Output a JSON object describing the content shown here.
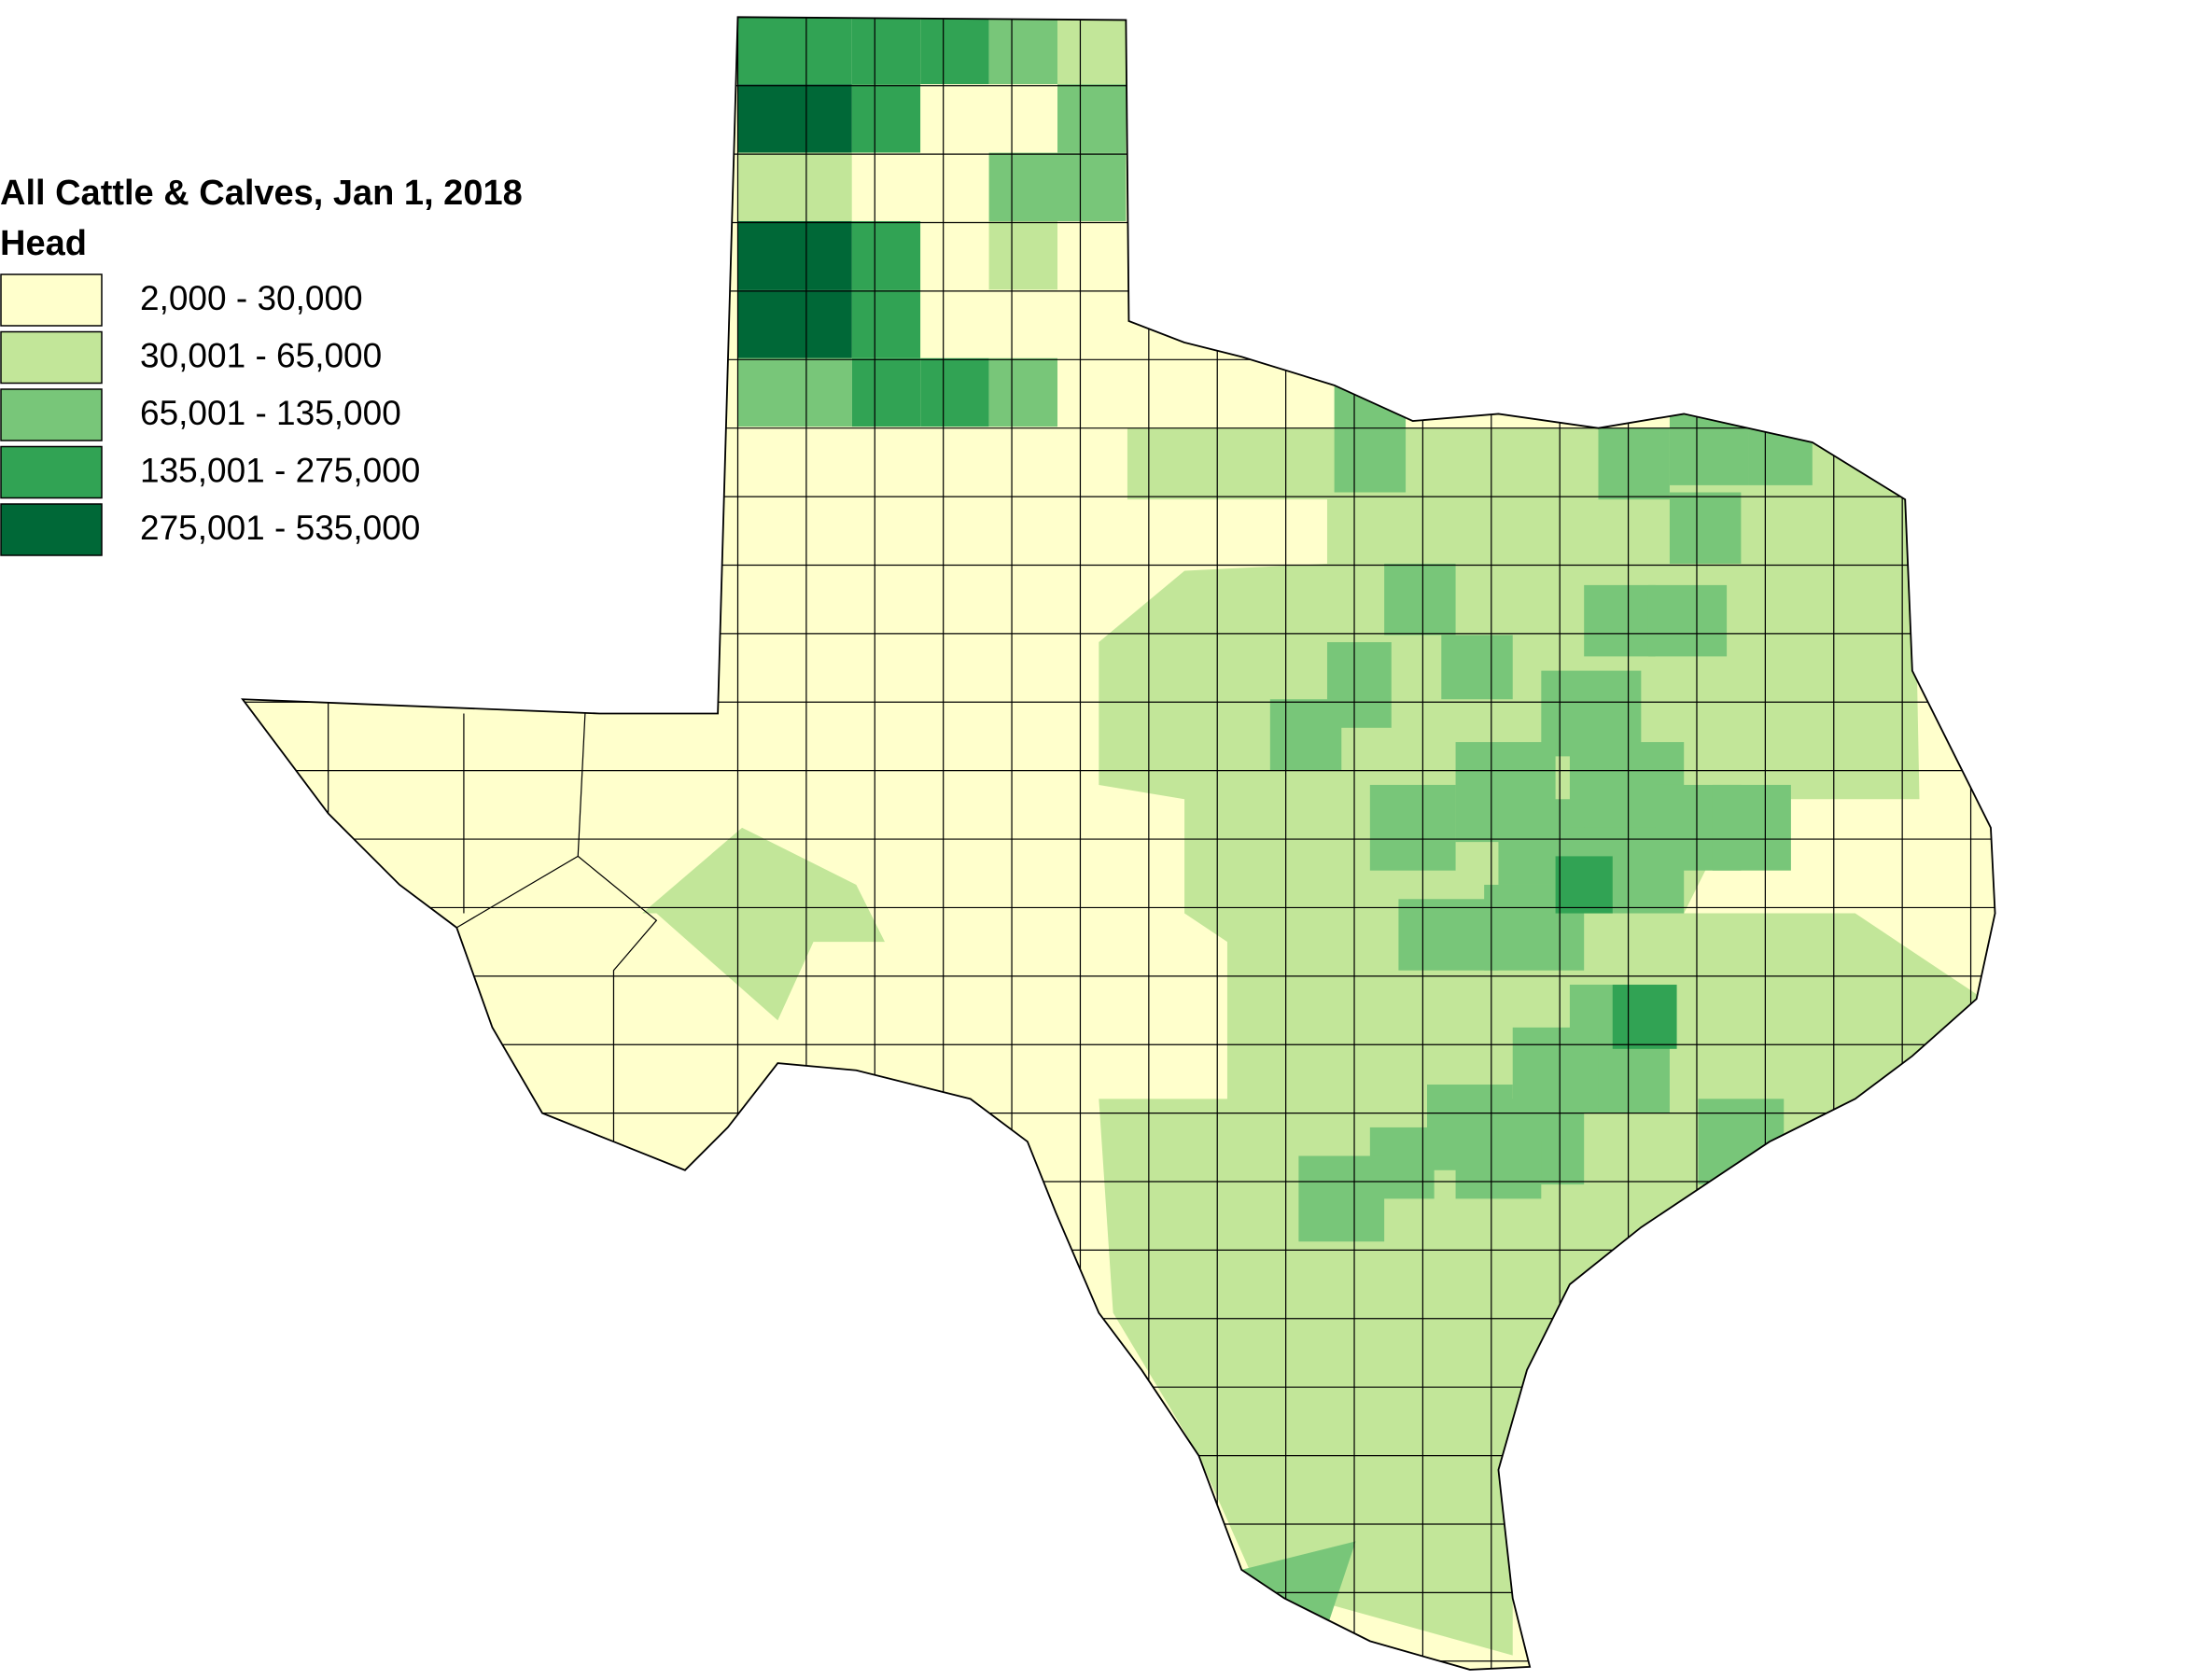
{
  "legend": {
    "title": "All Cattle & Calves, Jan 1, 2018",
    "subtitle": "Head",
    "classes": [
      {
        "label": "2,000 - 30,000",
        "color": "#ffffcc"
      },
      {
        "label": "30,001 - 65,000",
        "color": "#c2e699"
      },
      {
        "label": "65,001 - 135,000",
        "color": "#78c679"
      },
      {
        "label": "135,001 - 275,000",
        "color": "#31a354"
      },
      {
        "label": "275,001 - 535,000",
        "color": "#006837"
      }
    ]
  }
}
